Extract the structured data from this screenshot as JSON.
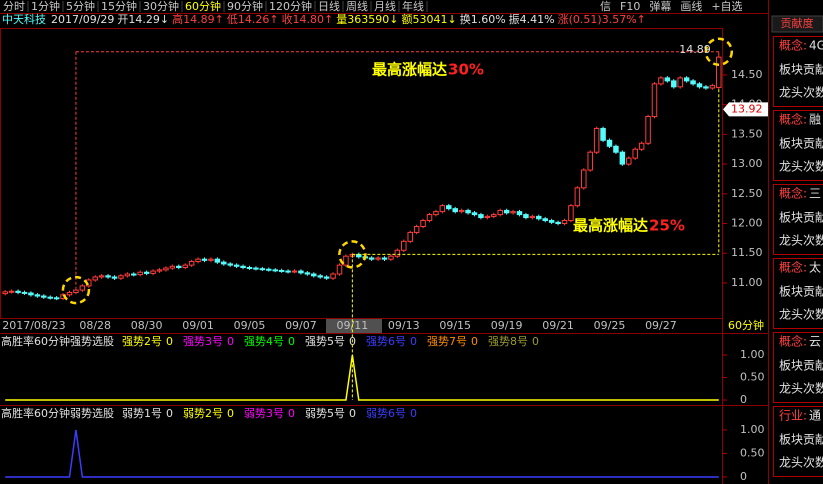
{
  "toolbar": {
    "periods": [
      "分时",
      "1分钟",
      "5分钟",
      "15分钟",
      "30分钟",
      "60分钟",
      "90分钟",
      "120分钟",
      "日线",
      "周线",
      "月线",
      "年线"
    ],
    "active": "60分钟",
    "tools": [
      "信",
      "F10",
      "弹幕",
      "画线",
      "+自选"
    ]
  },
  "quote": {
    "name": "中天科技",
    "date": "2017/09/29",
    "fields": [
      {
        "text": "开14.29↓",
        "color": "#e0e0e0"
      },
      {
        "text": "高14.89↑",
        "color": "#ff4040"
      },
      {
        "text": "低14.26↑",
        "color": "#ff4040"
      },
      {
        "text": "收14.80↑",
        "color": "#ff4040"
      },
      {
        "text": "量363590↓",
        "color": "#ffff00"
      },
      {
        "text": "额53041↓",
        "color": "#ffff00"
      },
      {
        "text": "换1.60%",
        "color": "#e0e0e0"
      },
      {
        "text": "振4.41%",
        "color": "#e0e0e0"
      },
      {
        "text": "涨(0.51)3.57%↑",
        "color": "#ff4040"
      }
    ]
  },
  "chart_data": [
    {
      "type": "candlestick",
      "up_color": "#ff3c3c",
      "down_color": "#54fcfc",
      "categories": [
        "2017/08/23",
        null,
        null,
        null,
        null,
        null,
        null,
        null,
        null,
        null,
        null,
        null,
        "08/28",
        null,
        null,
        null,
        null,
        null,
        null,
        null,
        "08/30",
        null,
        null,
        null,
        null,
        null,
        null,
        null,
        "09/01",
        null,
        null,
        null,
        null,
        null,
        null,
        null,
        "09/05",
        null,
        null,
        null,
        null,
        null,
        null,
        null,
        "09/07",
        null,
        null,
        null,
        null,
        null,
        null,
        null,
        "09/11",
        null,
        null,
        null,
        null,
        null,
        null,
        null,
        "09/13",
        null,
        null,
        null,
        null,
        null,
        null,
        null,
        "09/15",
        null,
        null,
        null,
        null,
        null,
        null,
        null,
        "09/19",
        null,
        null,
        null,
        null,
        null,
        null,
        null,
        "09/21",
        null,
        null,
        null,
        null,
        null,
        null,
        null,
        "09/25",
        null,
        null,
        null,
        null,
        null,
        null,
        null,
        "09/27",
        null,
        null,
        null,
        null,
        null,
        null,
        null,
        null,
        null,
        null,
        null
      ],
      "ohlc": [
        [
          10.82,
          10.88,
          10.79,
          10.85
        ],
        [
          10.85,
          10.89,
          10.82,
          10.86
        ],
        [
          10.86,
          10.89,
          10.81,
          10.84
        ],
        [
          10.84,
          10.87,
          10.8,
          10.83
        ],
        [
          10.83,
          10.86,
          10.77,
          10.8
        ],
        [
          10.8,
          10.83,
          10.75,
          10.78
        ],
        [
          10.78,
          10.81,
          10.73,
          10.76
        ],
        [
          10.76,
          10.79,
          10.72,
          10.75
        ],
        [
          10.75,
          10.78,
          10.71,
          10.74
        ],
        [
          10.74,
          10.83,
          10.71,
          10.8
        ],
        [
          10.8,
          10.87,
          10.77,
          10.84
        ],
        [
          10.84,
          10.91,
          10.81,
          10.88
        ],
        [
          10.88,
          10.98,
          10.85,
          10.95
        ],
        [
          10.95,
          11.08,
          10.92,
          11.05
        ],
        [
          11.05,
          11.13,
          11.02,
          11.1
        ],
        [
          11.1,
          11.15,
          11.07,
          11.12
        ],
        [
          11.12,
          11.15,
          11.07,
          11.1
        ],
        [
          11.1,
          11.13,
          11.05,
          11.08
        ],
        [
          11.08,
          11.15,
          11.05,
          11.12
        ],
        [
          11.12,
          11.18,
          11.09,
          11.15
        ],
        [
          11.15,
          11.18,
          11.11,
          11.14
        ],
        [
          11.14,
          11.21,
          11.11,
          11.18
        ],
        [
          11.18,
          11.21,
          11.13,
          11.16
        ],
        [
          11.16,
          11.23,
          11.13,
          11.2
        ],
        [
          11.2,
          11.25,
          11.17,
          11.22
        ],
        [
          11.22,
          11.28,
          11.19,
          11.25
        ],
        [
          11.25,
          11.31,
          11.22,
          11.28
        ],
        [
          11.28,
          11.31,
          11.23,
          11.26
        ],
        [
          11.26,
          11.33,
          11.23,
          11.3
        ],
        [
          11.3,
          11.39,
          11.27,
          11.36
        ],
        [
          11.36,
          11.43,
          11.33,
          11.4
        ],
        [
          11.4,
          11.43,
          11.35,
          11.38
        ],
        [
          11.38,
          11.43,
          11.35,
          11.4
        ],
        [
          11.4,
          11.43,
          11.32,
          11.35
        ],
        [
          11.35,
          11.38,
          11.29,
          11.32
        ],
        [
          11.32,
          11.35,
          11.27,
          11.3
        ],
        [
          11.3,
          11.33,
          11.25,
          11.28
        ],
        [
          11.28,
          11.31,
          11.23,
          11.26
        ],
        [
          11.26,
          11.29,
          11.22,
          11.25
        ],
        [
          11.25,
          11.28,
          11.21,
          11.24
        ],
        [
          11.24,
          11.27,
          11.2,
          11.23
        ],
        [
          11.23,
          11.26,
          11.19,
          11.22
        ],
        [
          11.22,
          11.25,
          11.18,
          11.21
        ],
        [
          11.21,
          11.24,
          11.17,
          11.2
        ],
        [
          11.2,
          11.23,
          11.16,
          11.19
        ],
        [
          11.19,
          11.23,
          11.16,
          11.2
        ],
        [
          11.2,
          11.23,
          11.14,
          11.17
        ],
        [
          11.17,
          11.2,
          11.12,
          11.15
        ],
        [
          11.15,
          11.18,
          11.09,
          11.12
        ],
        [
          11.12,
          11.15,
          11.07,
          11.1
        ],
        [
          11.1,
          11.13,
          11.05,
          11.08
        ],
        [
          11.08,
          11.18,
          11.05,
          11.15
        ],
        [
          11.15,
          11.33,
          11.12,
          11.3
        ],
        [
          11.3,
          11.48,
          11.27,
          11.45
        ],
        [
          11.45,
          11.51,
          11.42,
          11.48
        ],
        [
          11.48,
          11.51,
          11.41,
          11.44
        ],
        [
          11.44,
          11.47,
          11.39,
          11.42
        ],
        [
          11.42,
          11.45,
          11.37,
          11.4
        ],
        [
          11.4,
          11.45,
          11.37,
          11.42
        ],
        [
          11.42,
          11.45,
          11.37,
          11.4
        ],
        [
          11.4,
          11.48,
          11.37,
          11.45
        ],
        [
          11.45,
          11.58,
          11.42,
          11.55
        ],
        [
          11.55,
          11.73,
          11.52,
          11.7
        ],
        [
          11.7,
          11.88,
          11.67,
          11.85
        ],
        [
          11.85,
          11.98,
          11.82,
          11.95
        ],
        [
          11.95,
          12.08,
          11.92,
          12.05
        ],
        [
          12.05,
          12.18,
          12.02,
          12.15
        ],
        [
          12.15,
          12.23,
          12.12,
          12.2
        ],
        [
          12.2,
          12.33,
          12.17,
          12.3
        ],
        [
          12.3,
          12.33,
          12.22,
          12.25
        ],
        [
          12.25,
          12.28,
          12.17,
          12.2
        ],
        [
          12.2,
          12.25,
          12.17,
          12.22
        ],
        [
          12.22,
          12.25,
          12.15,
          12.18
        ],
        [
          12.18,
          12.21,
          12.12,
          12.15
        ],
        [
          12.15,
          12.18,
          12.07,
          12.1
        ],
        [
          12.1,
          12.15,
          12.07,
          12.12
        ],
        [
          12.12,
          12.18,
          12.09,
          12.15
        ],
        [
          12.15,
          12.25,
          12.12,
          12.22
        ],
        [
          12.22,
          12.25,
          12.15,
          12.18
        ],
        [
          12.18,
          12.23,
          12.15,
          12.2
        ],
        [
          12.2,
          12.23,
          12.12,
          12.15
        ],
        [
          12.15,
          12.18,
          12.07,
          12.1
        ],
        [
          12.1,
          12.15,
          12.07,
          12.12
        ],
        [
          12.12,
          12.15,
          12.05,
          12.08
        ],
        [
          12.08,
          12.11,
          12.02,
          12.05
        ],
        [
          12.05,
          12.08,
          11.99,
          12.02
        ],
        [
          12.02,
          12.05,
          11.97,
          12.0
        ],
        [
          12.0,
          12.08,
          11.97,
          12.05
        ],
        [
          12.05,
          12.33,
          12.02,
          12.3
        ],
        [
          12.3,
          12.63,
          12.27,
          12.6
        ],
        [
          12.6,
          12.93,
          12.57,
          12.9
        ],
        [
          12.9,
          13.23,
          12.87,
          13.2
        ],
        [
          13.2,
          13.63,
          13.17,
          13.6
        ],
        [
          13.6,
          13.63,
          13.37,
          13.4
        ],
        [
          13.4,
          13.43,
          13.27,
          13.3
        ],
        [
          13.3,
          13.33,
          13.17,
          13.2
        ],
        [
          13.2,
          13.23,
          12.97,
          13.0
        ],
        [
          13.0,
          13.13,
          12.97,
          13.1
        ],
        [
          13.1,
          13.28,
          13.07,
          13.25
        ],
        [
          13.25,
          13.38,
          13.22,
          13.35
        ],
        [
          13.35,
          13.83,
          13.32,
          13.8
        ],
        [
          13.8,
          14.38,
          13.77,
          14.35
        ],
        [
          14.35,
          14.48,
          14.32,
          14.45
        ],
        [
          14.45,
          14.48,
          14.37,
          14.4
        ],
        [
          14.4,
          14.43,
          14.27,
          14.3
        ],
        [
          14.3,
          14.48,
          14.27,
          14.45
        ],
        [
          14.45,
          14.48,
          14.37,
          14.4
        ],
        [
          14.4,
          14.43,
          14.32,
          14.35
        ],
        [
          14.35,
          14.38,
          14.27,
          14.3
        ],
        [
          14.3,
          14.33,
          14.25,
          14.28
        ],
        [
          14.28,
          14.35,
          14.25,
          14.32
        ],
        [
          14.29,
          14.89,
          14.26,
          14.8
        ]
      ],
      "ylim": [
        10.41,
        15.29
      ],
      "yticks": [
        {
          "value": 11,
          "label": "11.00"
        },
        {
          "value": 11.5,
          "label": "11.50"
        },
        {
          "value": 12,
          "label": "12.00"
        },
        {
          "value": 12.5,
          "label": "12.50"
        },
        {
          "value": 13,
          "label": "13.00"
        },
        {
          "value": 13.5,
          "label": "13.50"
        },
        {
          "value": 14,
          "label": "14.00"
        },
        {
          "value": 14.5,
          "label": "14.50"
        }
      ],
      "period_label": "60分钟",
      "high_label": 14.89,
      "price_tag": 13.92,
      "annotations": [
        {
          "text": "最高涨幅达",
          "highlight": "30%"
        },
        {
          "text": "最高涨幅达",
          "highlight": "25%"
        }
      ]
    },
    {
      "type": "signal",
      "title": "高胜率60分钟强势选股",
      "color": "#ffff00",
      "series": [
        {
          "name": "强势2号",
          "color": "#ffff00",
          "value": 0
        },
        {
          "name": "强势3号",
          "color": "#ff00ff",
          "value": 0
        },
        {
          "name": "强势4号",
          "color": "#00ff00",
          "value": 0
        },
        {
          "name": "强势5号",
          "color": "#e0e0e0",
          "value": 0
        },
        {
          "name": "强势6号",
          "color": "#3c3cff",
          "value": 0
        },
        {
          "name": "强势7号",
          "color": "#ff8c00",
          "value": 0
        },
        {
          "name": "强势8号",
          "color": "#9a9a30",
          "value": 0
        }
      ],
      "values": [
        0,
        0,
        0,
        0,
        0,
        0,
        0,
        0,
        0,
        0,
        0,
        0,
        0,
        0,
        0,
        0,
        0,
        0,
        0,
        0,
        0,
        0,
        0,
        0,
        0,
        0,
        0,
        0,
        0,
        0,
        0,
        0,
        0,
        0,
        0,
        0,
        0,
        0,
        0,
        0,
        0,
        0,
        0,
        0,
        0,
        0,
        0,
        0,
        0,
        0,
        0,
        0,
        0,
        0,
        1,
        0,
        0,
        0,
        0,
        0,
        0,
        0,
        0,
        0,
        0,
        0,
        0,
        0,
        0,
        0,
        0,
        0,
        0,
        0,
        0,
        0,
        0,
        0,
        0,
        0,
        0,
        0,
        0,
        0,
        0,
        0,
        0,
        0,
        0,
        0,
        0,
        0,
        0,
        0,
        0,
        0,
        0,
        0,
        0,
        0,
        0,
        0,
        0,
        0,
        0,
        0,
        0,
        0,
        0,
        0,
        0,
        0
      ],
      "ylim": [
        -0.11,
        1.49
      ],
      "yticks": [
        0,
        {
          "value": 0.5,
          "label": "0.50"
        },
        {
          "value": 1,
          "label": "1.00"
        }
      ]
    },
    {
      "type": "signal",
      "title": "高胜率60分钟弱势选股",
      "color": "#3c3cff",
      "series": [
        {
          "name": "弱势1号",
          "color": "#e0e0e0",
          "value": 0
        },
        {
          "name": "弱势2号",
          "color": "#ffff00",
          "value": 0
        },
        {
          "name": "弱势3号",
          "color": "#ff00ff",
          "value": 0
        },
        {
          "name": "弱势5号",
          "color": "#e0e0e0",
          "value": 0
        },
        {
          "name": "弱势6号",
          "color": "#3c3cff",
          "value": 0
        }
      ],
      "values": [
        0,
        0,
        0,
        0,
        0,
        0,
        0,
        0,
        0,
        0,
        0,
        1,
        0,
        0,
        0,
        0,
        0,
        0,
        0,
        0,
        0,
        0,
        0,
        0,
        0,
        0,
        0,
        0,
        0,
        0,
        0,
        0,
        0,
        0,
        0,
        0,
        0,
        0,
        0,
        0,
        0,
        0,
        0,
        0,
        0,
        0,
        0,
        0,
        0,
        0,
        0,
        0,
        0,
        0,
        0,
        0,
        0,
        0,
        0,
        0,
        0,
        0,
        0,
        0,
        0,
        0,
        0,
        0,
        0,
        0,
        0,
        0,
        0,
        0,
        0,
        0,
        0,
        0,
        0,
        0,
        0,
        0,
        0,
        0,
        0,
        0,
        0,
        0,
        0,
        0,
        0,
        0,
        0,
        0,
        0,
        0,
        0,
        0,
        0,
        0,
        0,
        0,
        0,
        0,
        0,
        0,
        0,
        0,
        0,
        0,
        0,
        0
      ],
      "ylim": [
        -0.15,
        1.53
      ],
      "yticks": [
        0,
        {
          "value": 0.5,
          "label": "0.50"
        },
        {
          "value": 1,
          "label": "1.00"
        }
      ]
    }
  ],
  "sidebar": {
    "title": "贡献度",
    "items": [
      {
        "tag": "概念:",
        "name": "4G",
        "lines": [
          "板块贡献",
          "龙头次数"
        ]
      },
      {
        "tag": "概念:",
        "name": "融",
        "lines": [
          "板块贡献",
          "龙头次数"
        ]
      },
      {
        "tag": "概念:",
        "name": "三",
        "lines": [
          "板块贡献",
          "龙头次数"
        ]
      },
      {
        "tag": "概念:",
        "name": "太",
        "lines": [
          "板块贡献",
          "龙头次数"
        ]
      },
      {
        "tag": "概念:",
        "name": "云",
        "lines": [
          "板块贡献",
          "龙头次数"
        ]
      },
      {
        "tag": "行业:",
        "name": "通",
        "lines": [
          "板块贡献",
          "龙头次数"
        ]
      }
    ]
  }
}
